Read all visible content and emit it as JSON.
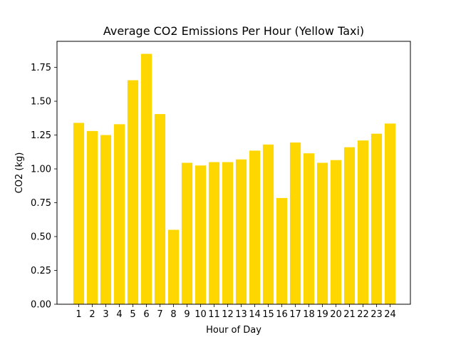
{
  "chart_data": {
    "type": "bar",
    "title": "Average CO2 Emissions Per Hour (Yellow Taxi)",
    "xlabel": "Hour of Day",
    "ylabel": "CO2 (kg)",
    "categories": [
      "1",
      "2",
      "3",
      "4",
      "5",
      "6",
      "7",
      "8",
      "9",
      "10",
      "11",
      "12",
      "13",
      "14",
      "15",
      "16",
      "17",
      "18",
      "19",
      "20",
      "21",
      "22",
      "23",
      "24"
    ],
    "values": [
      1.34,
      1.28,
      1.25,
      1.33,
      1.655,
      1.85,
      1.405,
      0.55,
      1.045,
      1.025,
      1.05,
      1.05,
      1.07,
      1.135,
      1.18,
      0.785,
      1.195,
      1.115,
      1.045,
      1.065,
      1.16,
      1.21,
      1.26,
      1.335
    ],
    "ylim": [
      0,
      1.9425
    ],
    "yticks": [
      "0.00",
      "0.25",
      "0.50",
      "0.75",
      "1.00",
      "1.25",
      "1.50",
      "1.75"
    ],
    "bar_color": "#FFD700",
    "grid": false,
    "legend": "none"
  }
}
